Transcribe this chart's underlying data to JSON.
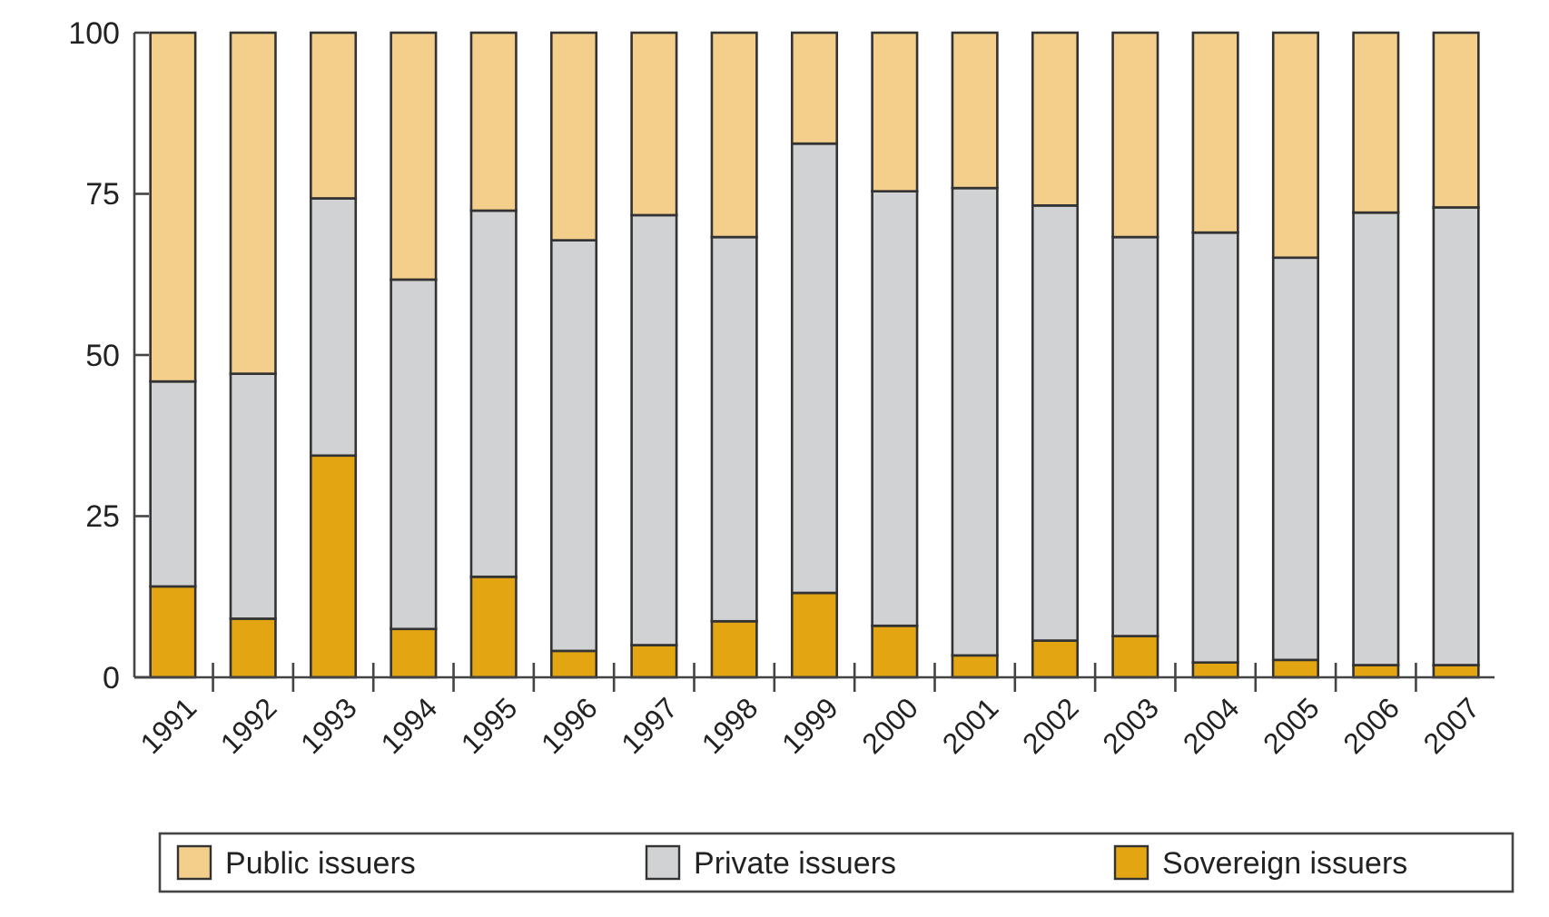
{
  "chart_data": {
    "type": "bar",
    "stacked": true,
    "categories": [
      "1991",
      "1992",
      "1993",
      "1994",
      "1995",
      "1996",
      "1997",
      "1998",
      "1999",
      "2000",
      "2001",
      "2002",
      "2003",
      "2004",
      "2005",
      "2006",
      "2007"
    ],
    "series": [
      {
        "name": "Sovereign issuers",
        "color": "#e3a512",
        "values": [
          14.1,
          9.1,
          34.4,
          7.5,
          15.6,
          4.1,
          5.0,
          8.7,
          13.1,
          8.0,
          3.4,
          5.7,
          6.4,
          2.3,
          2.7,
          1.9,
          1.9
        ]
      },
      {
        "name": "Private issuers",
        "color": "#d1d2d4",
        "values": [
          31.8,
          38.0,
          39.9,
          54.2,
          56.8,
          63.7,
          66.7,
          59.6,
          69.7,
          67.4,
          72.5,
          67.5,
          61.9,
          66.7,
          62.4,
          70.2,
          71.0
        ]
      },
      {
        "name": "Public issuers",
        "color": "#f3cf8b",
        "values": [
          54.1,
          52.9,
          25.7,
          38.3,
          27.6,
          32.2,
          28.3,
          31.7,
          17.2,
          24.6,
          24.1,
          26.8,
          31.7,
          31.0,
          34.9,
          27.9,
          27.1
        ]
      }
    ],
    "ylim": [
      0,
      100
    ],
    "yticks": [
      0,
      25,
      50,
      75,
      100
    ],
    "grid": false,
    "legend": "bottom"
  }
}
